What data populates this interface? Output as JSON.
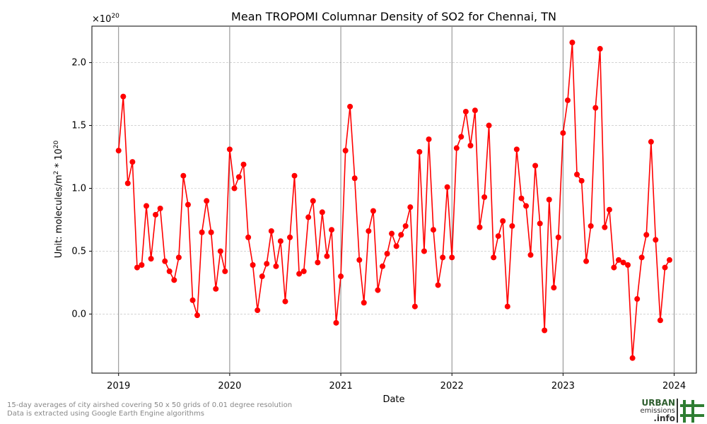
{
  "chart_data": {
    "type": "line",
    "title": "Mean TROPOMI Columnar Density of SO2 for Chennai, TN",
    "x_label": "Date",
    "y_label": [
      "Unit: molecules/m",
      "2",
      " * 10",
      "20"
    ],
    "offset_text": [
      "×10",
      "20"
    ],
    "color": "#ff0000",
    "grid": true,
    "xlim": [
      2018.76,
      2024.2
    ],
    "xticks": [
      2019,
      2020,
      2021,
      2022,
      2023,
      2024
    ],
    "ylim": [
      -0.47,
      2.29
    ],
    "yticks": [
      {
        "value": 0,
        "label": "0.0"
      },
      {
        "value": 0.5,
        "label": "0.5"
      },
      {
        "value": 1,
        "label": "1.0"
      },
      {
        "value": 1.5,
        "label": "1.5"
      },
      {
        "value": 2,
        "label": "2.0"
      }
    ],
    "x": [
      2019.0,
      2019.042,
      2019.083,
      2019.125,
      2019.167,
      2019.208,
      2019.25,
      2019.292,
      2019.333,
      2019.375,
      2019.417,
      2019.458,
      2019.5,
      2019.542,
      2019.583,
      2019.625,
      2019.667,
      2019.708,
      2019.75,
      2019.792,
      2019.833,
      2019.875,
      2019.917,
      2019.958,
      2020.0,
      2020.042,
      2020.083,
      2020.125,
      2020.167,
      2020.208,
      2020.25,
      2020.292,
      2020.333,
      2020.375,
      2020.417,
      2020.458,
      2020.5,
      2020.542,
      2020.583,
      2020.625,
      2020.667,
      2020.708,
      2020.75,
      2020.792,
      2020.833,
      2020.875,
      2020.917,
      2020.958,
      2021.0,
      2021.042,
      2021.083,
      2021.125,
      2021.167,
      2021.208,
      2021.25,
      2021.292,
      2021.333,
      2021.375,
      2021.417,
      2021.458,
      2021.5,
      2021.542,
      2021.583,
      2021.625,
      2021.667,
      2021.708,
      2021.75,
      2021.792,
      2021.833,
      2021.875,
      2021.917,
      2021.958,
      2022.0,
      2022.042,
      2022.083,
      2022.125,
      2022.167,
      2022.208,
      2022.25,
      2022.292,
      2022.333,
      2022.375,
      2022.417,
      2022.458,
      2022.5,
      2022.542,
      2022.583,
      2022.625,
      2022.667,
      2022.708,
      2022.75,
      2022.792,
      2022.833,
      2022.875,
      2022.917,
      2022.958,
      2023.0,
      2023.042,
      2023.083,
      2023.125,
      2023.167,
      2023.208,
      2023.25,
      2023.292,
      2023.333,
      2023.375,
      2023.417,
      2023.458,
      2023.5,
      2023.542,
      2023.583,
      2023.625,
      2023.667,
      2023.708,
      2023.75,
      2023.792,
      2023.833,
      2023.875,
      2023.917,
      2023.958
    ],
    "values": [
      1.3,
      1.73,
      1.04,
      1.21,
      0.37,
      0.39,
      0.86,
      0.44,
      0.79,
      0.84,
      0.42,
      0.34,
      0.27,
      0.45,
      1.1,
      0.87,
      0.11,
      -0.01,
      0.65,
      0.9,
      0.65,
      0.2,
      0.5,
      0.34,
      1.31,
      1.0,
      1.09,
      1.19,
      0.61,
      0.39,
      0.03,
      0.3,
      0.4,
      0.66,
      0.38,
      0.58,
      0.1,
      0.61,
      1.1,
      0.32,
      0.34,
      0.77,
      0.9,
      0.41,
      0.81,
      0.46,
      0.67,
      -0.07,
      0.3,
      1.3,
      1.65,
      1.08,
      0.43,
      0.09,
      0.66,
      0.82,
      0.19,
      0.38,
      0.48,
      0.64,
      0.54,
      0.63,
      0.7,
      0.85,
      0.06,
      1.29,
      0.5,
      1.39,
      0.67,
      0.23,
      0.45,
      1.01,
      0.45,
      1.32,
      1.41,
      1.61,
      1.34,
      1.62,
      0.69,
      0.93,
      1.5,
      0.45,
      0.62,
      0.74,
      0.06,
      0.7,
      1.31,
      0.92,
      0.86,
      0.47,
      1.18,
      0.72,
      -0.13,
      0.91,
      0.21,
      0.61,
      1.44,
      1.7,
      2.16,
      1.11,
      1.06,
      0.42,
      0.7,
      1.64,
      2.11,
      0.69,
      0.83,
      0.37,
      0.43,
      0.41,
      0.39,
      -0.35,
      0.12,
      0.45,
      0.63,
      1.37,
      0.59,
      -0.05,
      0.37,
      0.43
    ]
  },
  "footer": {
    "notes": [
      "15-day averages of city airshed covering 50 x 50 grids of 0.01 degree resolution",
      "Data is extracted using Google Earth Engine algorithms"
    ],
    "logo": [
      "URBAN",
      "emissions",
      ".info"
    ]
  }
}
